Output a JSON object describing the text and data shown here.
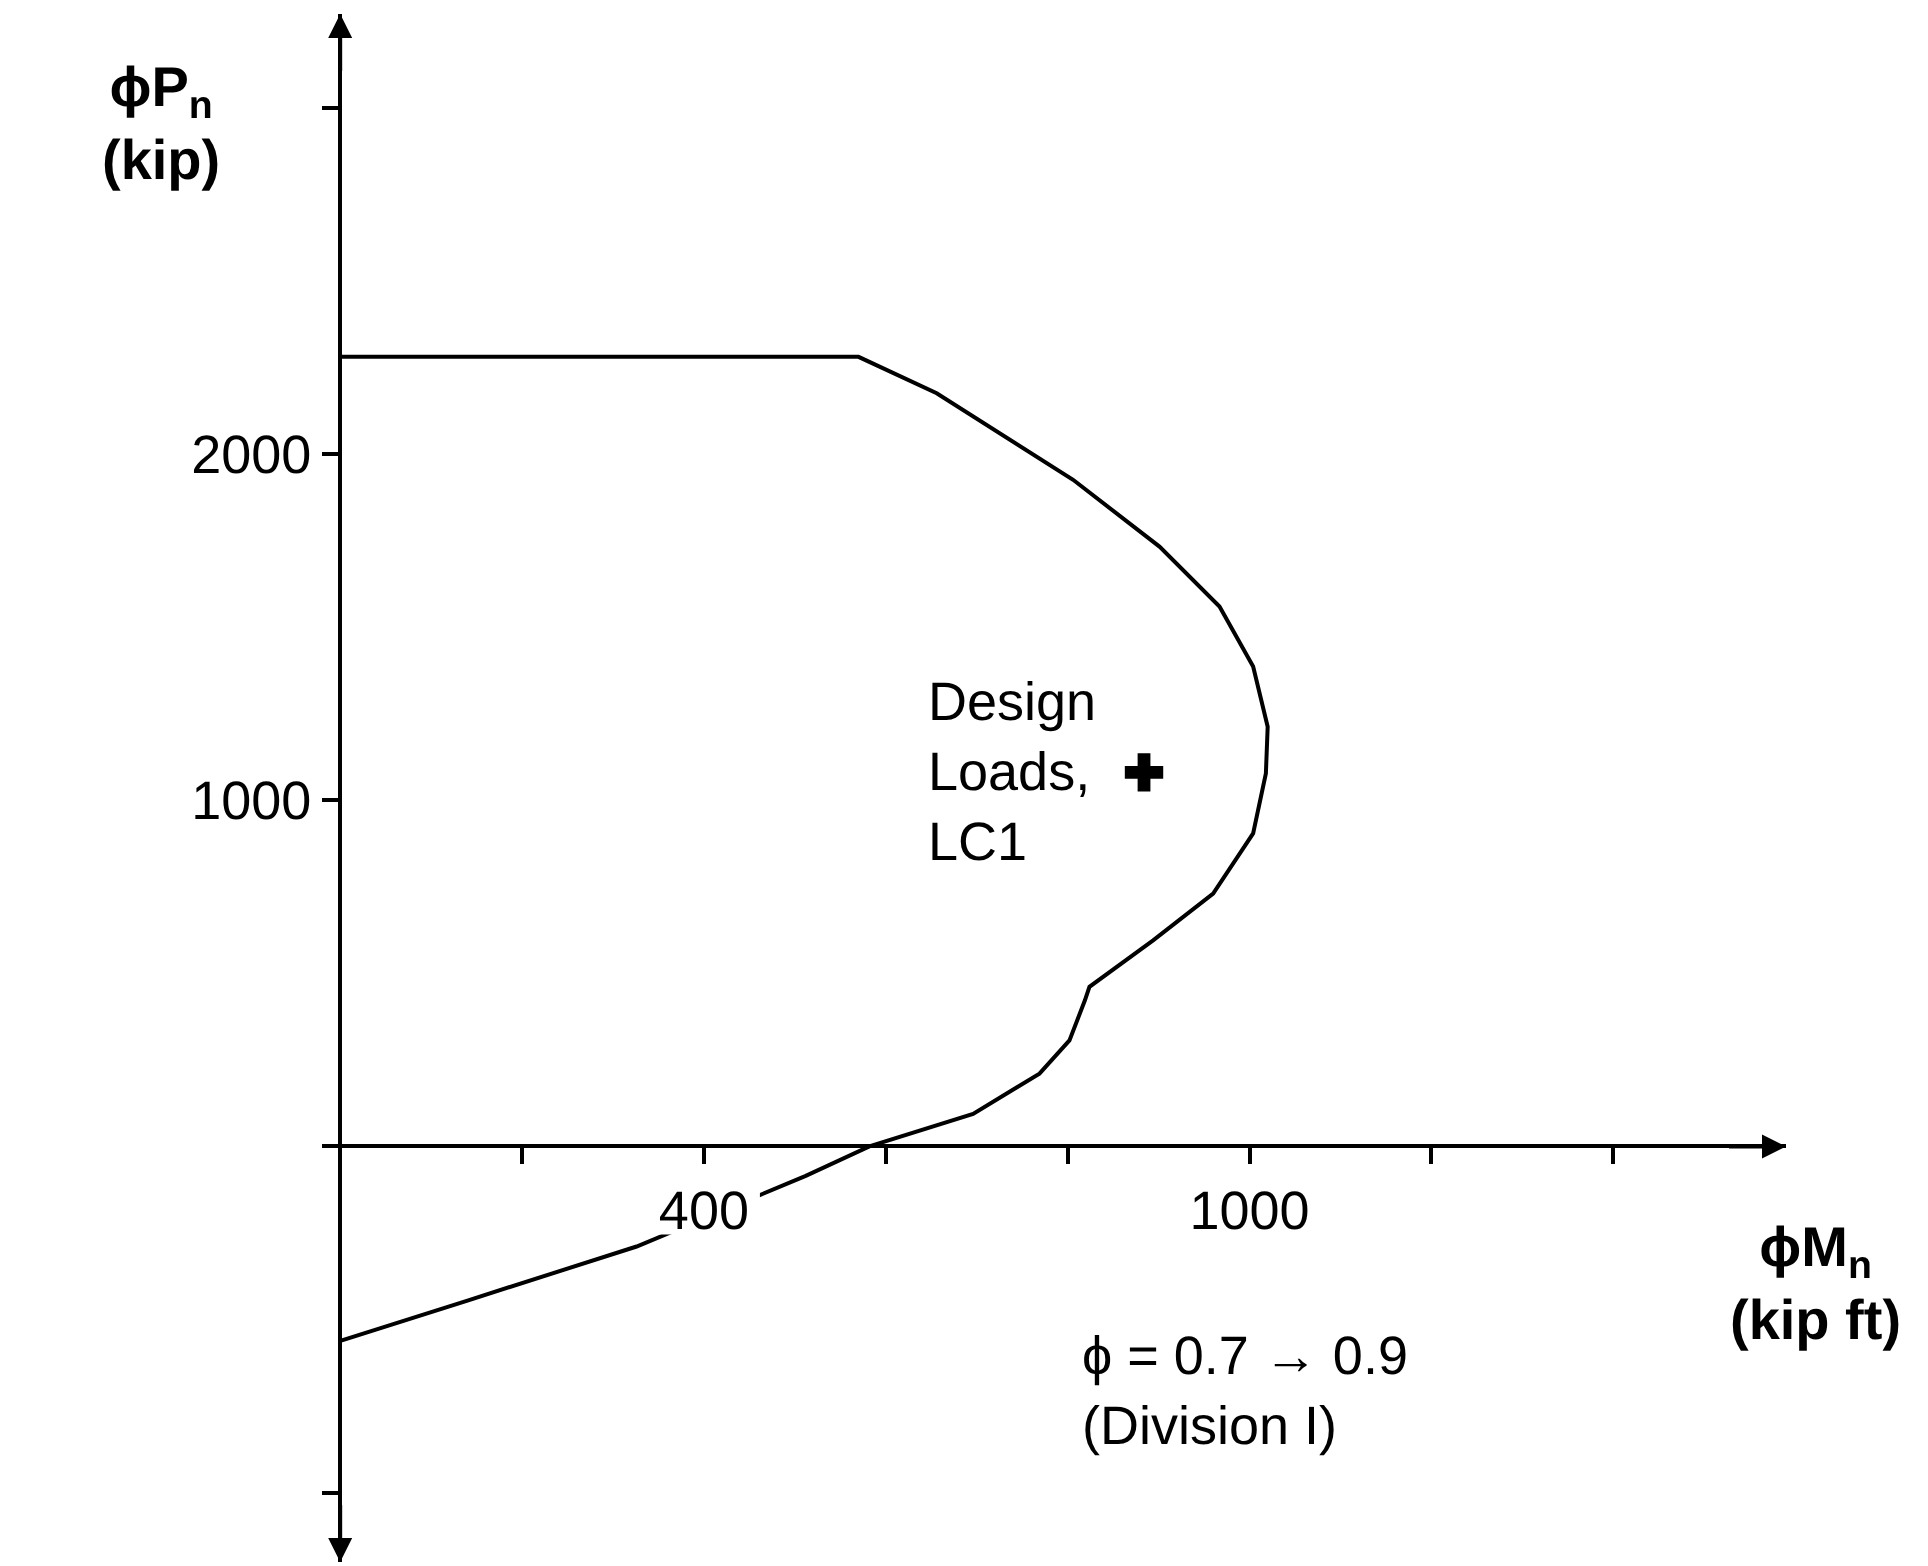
{
  "chart_data": {
    "type": "line",
    "xlabel": "ϕM$_{n}$\n(kip ft)",
    "ylabel": "ϕP$_{n}$\n(kip)",
    "annotations": [
      "ϕ = 0.7 → 0.9\n(Division I)",
      {
        "text": "Design\nLoads,\nLC1",
        "x": 884,
        "y": 1080
      }
    ],
    "series": [
      {
        "color": "#000000",
        "marker": "none",
        "line_style": "solid",
        "x": [
          0,
          570,
          656,
          806,
          901,
          967,
          1004,
          1020,
          1018,
          1004,
          960,
          894,
          824,
          819,
          802,
          769,
          696,
          582,
          512,
          326,
          140,
          1
        ],
        "values": [
          2280,
          2280,
          2175,
          1925,
          1732,
          1559,
          1386,
          1212,
          1077,
          904,
          730,
          595,
          461,
          422,
          306,
          210,
          94,
          0,
          -85,
          -289,
          -445,
          -561
        ]
      },
      {
        "type": "scatter",
        "color": "#000000",
        "marker": "cross",
        "x": [
          884
        ],
        "values": [
          1080
        ]
      }
    ],
    "xlim": [
      -20,
      1590
    ],
    "ylim": [
      -1200,
      3270
    ],
    "xticks": [
      {
        "value": 200,
        "label": null
      },
      400,
      {
        "value": 600,
        "label": null
      },
      {
        "value": 800,
        "label": null
      },
      1000,
      {
        "value": 1200,
        "label": null
      },
      {
        "value": 1400,
        "label": null
      }
    ],
    "yticks": [
      {
        "value": -1000,
        "label": null
      },
      1000,
      2000,
      {
        "value": 3000,
        "label": null
      }
    ]
  }
}
